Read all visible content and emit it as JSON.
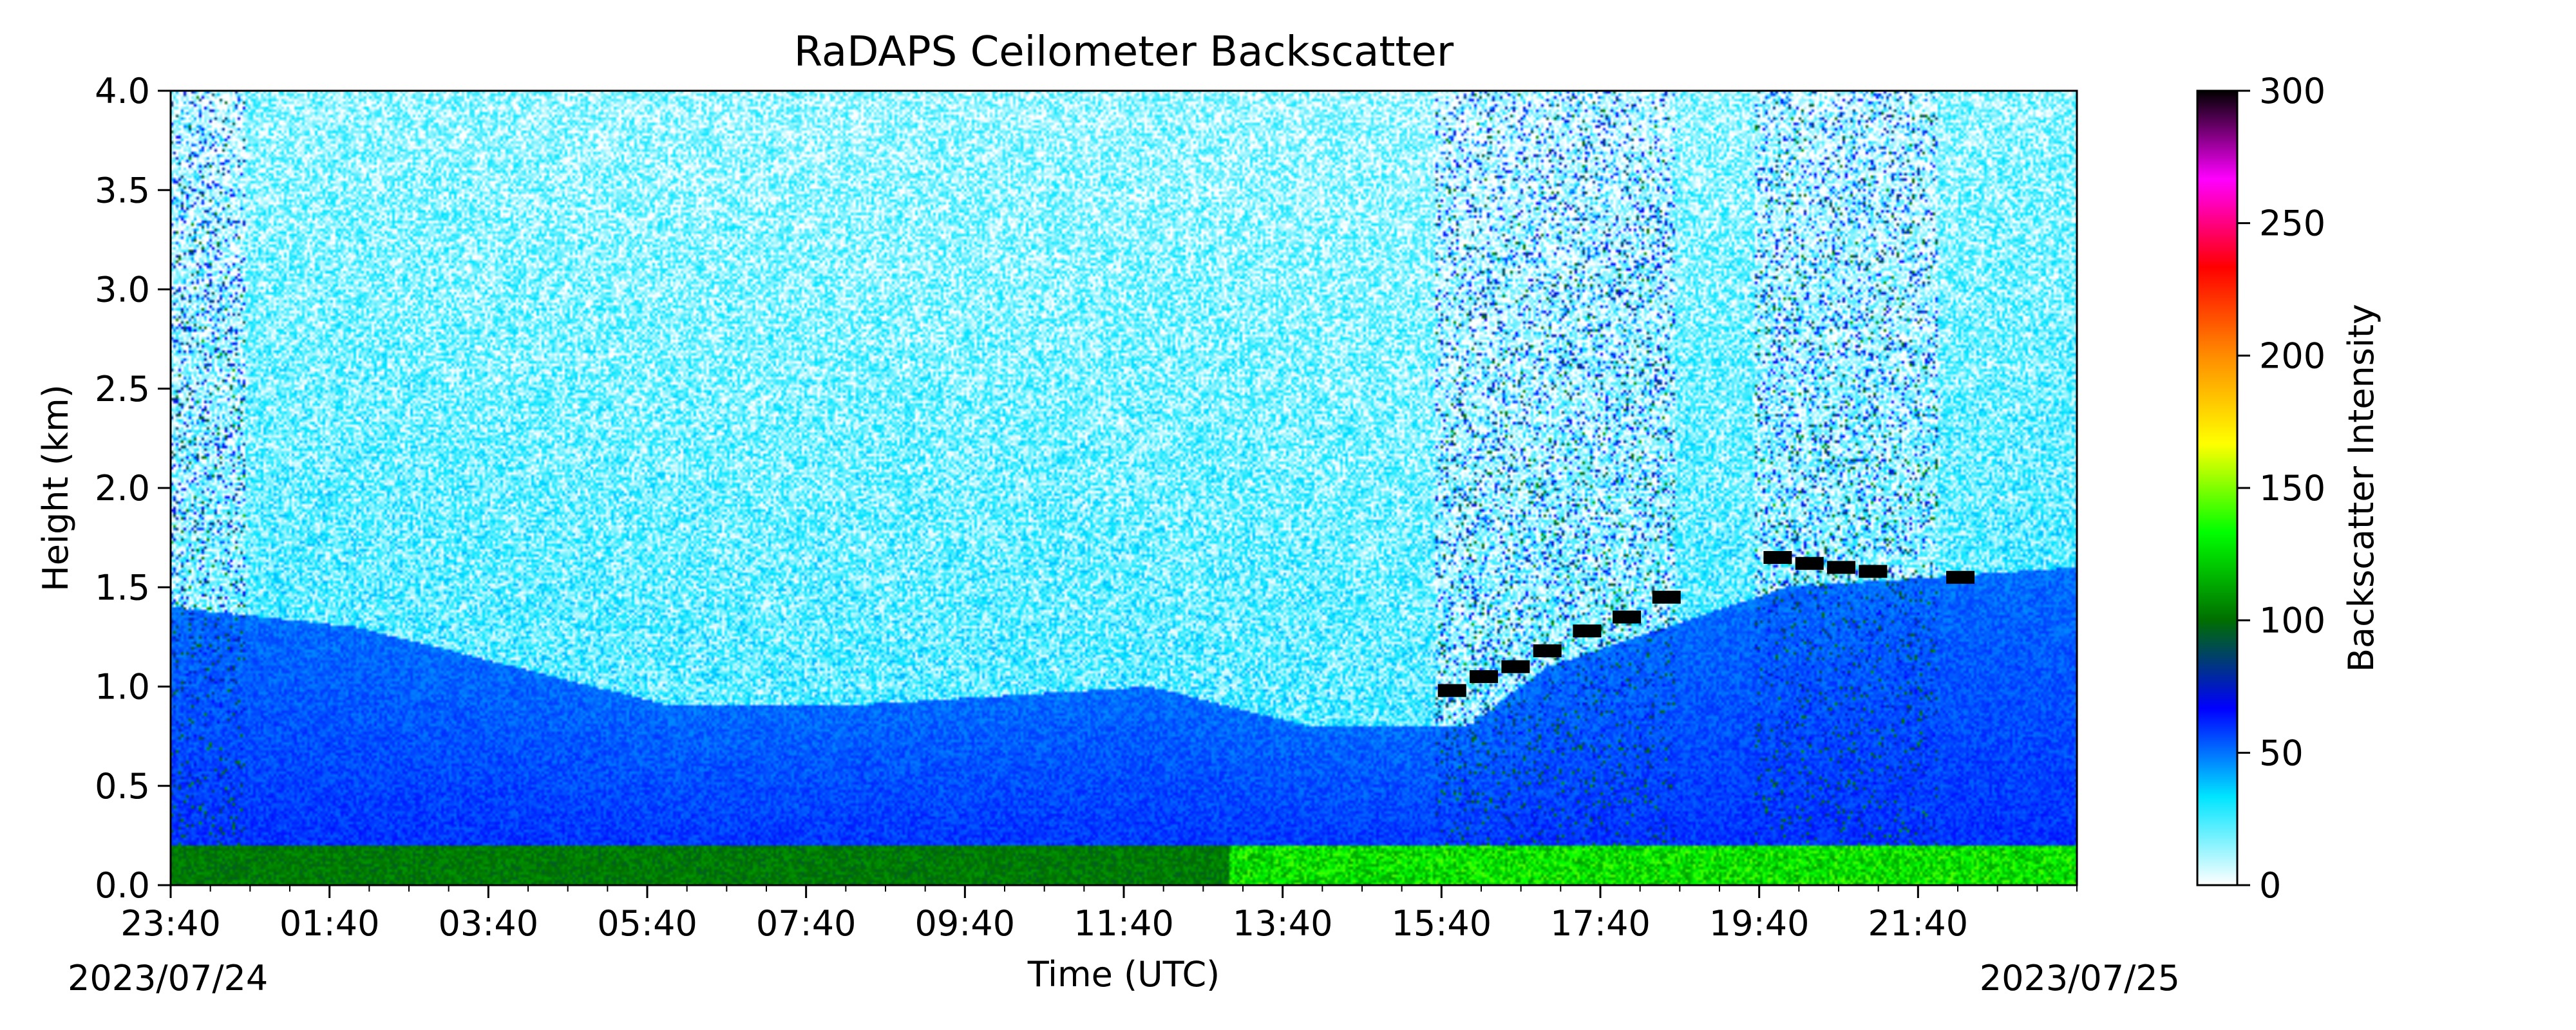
{
  "chart_data": {
    "type": "heatmap",
    "title": "RaDAPS Ceilometer Backscatter",
    "xlabel": "Time (UTC)",
    "ylabel": "Height (km)",
    "x_start_date": "2023/07/24",
    "x_end_date": "2023/07/25",
    "x_start_hour": 23.667,
    "x_end_hour": 47.667,
    "x_ticks": [
      {
        "hour": 23.667,
        "label": "23:40"
      },
      {
        "hour": 25.667,
        "label": "01:40"
      },
      {
        "hour": 27.667,
        "label": "03:40"
      },
      {
        "hour": 29.667,
        "label": "05:40"
      },
      {
        "hour": 31.667,
        "label": "07:40"
      },
      {
        "hour": 33.667,
        "label": "09:40"
      },
      {
        "hour": 35.667,
        "label": "11:40"
      },
      {
        "hour": 37.667,
        "label": "13:40"
      },
      {
        "hour": 39.667,
        "label": "15:40"
      },
      {
        "hour": 41.667,
        "label": "17:40"
      },
      {
        "hour": 43.667,
        "label": "19:40"
      },
      {
        "hour": 45.667,
        "label": "21:40"
      }
    ],
    "y_ticks": [
      "0.0",
      "0.5",
      "1.0",
      "1.5",
      "2.0",
      "2.5",
      "3.0",
      "3.5",
      "4.0"
    ],
    "ylim": [
      0,
      4
    ],
    "colorbar": {
      "label": "Backscatter Intensity",
      "range": [
        0,
        300
      ],
      "ticks": [
        "0",
        "50",
        "100",
        "150",
        "200",
        "250",
        "300"
      ],
      "colors": [
        "#ffffff",
        "#00e5ff",
        "#0000ff",
        "#006e00",
        "#00ff00",
        "#ffff00",
        "#ff8c00",
        "#ff0000",
        "#ff00ff",
        "#000000"
      ]
    },
    "approx_features": {
      "surface_layer_top_km": 0.2,
      "boundary_layer_top_km": [
        {
          "hour": 23.667,
          "km": 1.4
        },
        {
          "hour": 26.0,
          "km": 1.3
        },
        {
          "hour": 28.0,
          "km": 1.1
        },
        {
          "hour": 30.0,
          "km": 0.9
        },
        {
          "hour": 32.0,
          "km": 0.9
        },
        {
          "hour": 34.0,
          "km": 0.95
        },
        {
          "hour": 36.0,
          "km": 1.0
        },
        {
          "hour": 38.0,
          "km": 0.8
        },
        {
          "hour": 40.0,
          "km": 0.8
        },
        {
          "hour": 41.0,
          "km": 1.1
        },
        {
          "hour": 42.5,
          "km": 1.3
        },
        {
          "hour": 44.0,
          "km": 1.5
        },
        {
          "hour": 47.667,
          "km": 1.6
        }
      ],
      "cloud_segments": [
        {
          "hour": 39.8,
          "km": 0.98
        },
        {
          "hour": 40.2,
          "km": 1.05
        },
        {
          "hour": 40.6,
          "km": 1.1
        },
        {
          "hour": 41.0,
          "km": 1.18
        },
        {
          "hour": 41.5,
          "km": 1.28
        },
        {
          "hour": 42.0,
          "km": 1.35
        },
        {
          "hour": 42.5,
          "km": 1.45
        },
        {
          "hour": 43.9,
          "km": 1.65
        },
        {
          "hour": 44.3,
          "km": 1.62
        },
        {
          "hour": 44.7,
          "km": 1.6
        },
        {
          "hour": 45.1,
          "km": 1.58
        },
        {
          "hour": 46.2,
          "km": 1.55
        }
      ],
      "noisy_column_hours": [
        [
          23.667,
          24.6
        ],
        [
          39.6,
          42.6
        ],
        [
          43.6,
          45.9
        ]
      ]
    }
  }
}
